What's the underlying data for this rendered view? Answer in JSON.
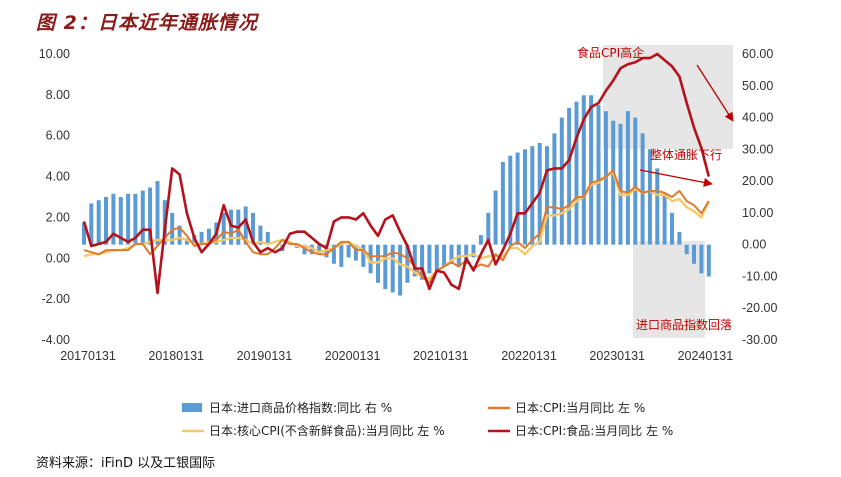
{
  "chart_data": {
    "type": "bar+line",
    "title": "图 2：日本近年通胀情况",
    "source": "资料来源：iFinD 以及工银国际",
    "x_tick_labels": [
      "20170131",
      "20180131",
      "20190131",
      "20200131",
      "20210131",
      "20220131",
      "20230131",
      "20240131"
    ],
    "x_start": "2017-01",
    "months": 86,
    "left_axis": {
      "ylim": [
        -4,
        10
      ],
      "ticks": [
        "-4.00",
        "-2.00",
        "0.00",
        "2.00",
        "4.00",
        "6.00",
        "8.00",
        "10.00"
      ],
      "tick_values": [
        -4,
        -2,
        0,
        2,
        4,
        6,
        8,
        10
      ]
    },
    "right_axis": {
      "ylim": [
        -30,
        60
      ],
      "ticks": [
        "-30.00",
        "-20.00",
        "-10.00",
        "0.00",
        "10.00",
        "20.00",
        "30.00",
        "40.00",
        "50.00",
        "60.00"
      ],
      "tick_values": [
        -30,
        -20,
        -10,
        0,
        10,
        20,
        30,
        40,
        50,
        60
      ]
    },
    "grid": false,
    "legend_position": "bottom",
    "colors": {
      "bar": "#5b9bd5",
      "cpi": "#e07a2e",
      "core": "#f5c96a",
      "food": "#b5121b",
      "ann": "#c00000",
      "shade": "#e6e6e6"
    },
    "series": [
      {
        "name": "日本:进口商品价格指数:同比 右 %",
        "axis": "right",
        "kind": "bar",
        "values": [
          7,
          13,
          14,
          15,
          16,
          15,
          16,
          16,
          17,
          18,
          20,
          14,
          10,
          6,
          2,
          3,
          4,
          5,
          7,
          10,
          11,
          11,
          12,
          10,
          6,
          4,
          0,
          -2,
          0,
          -1,
          -3,
          -3,
          -3,
          -4,
          -6,
          -7,
          -4,
          -5,
          -7,
          -9,
          -12,
          -14,
          -15,
          -16,
          -12,
          -10,
          -11,
          -9,
          -8,
          -7,
          -6,
          -7,
          -6,
          -4,
          3,
          10,
          17,
          26,
          28,
          29,
          30,
          31,
          32,
          31,
          35,
          40,
          43,
          45,
          47,
          47,
          44,
          42,
          39,
          38,
          42,
          40,
          35,
          30,
          24,
          16,
          10,
          4,
          -3,
          -6,
          -9,
          -10
        ]
      },
      {
        "name": "日本:CPI:当月同比 左 %",
        "axis": "left",
        "kind": "line",
        "values": [
          0.4,
          0.3,
          0.2,
          0.4,
          0.4,
          0.4,
          0.4,
          0.7,
          0.7,
          0.2,
          0.6,
          1.0,
          1.4,
          1.5,
          1.1,
          0.6,
          0.7,
          0.7,
          0.9,
          1.3,
          1.2,
          1.4,
          0.8,
          0.3,
          0.2,
          0.2,
          0.5,
          0.9,
          0.7,
          0.7,
          0.5,
          0.3,
          0.2,
          0.2,
          0.5,
          0.8,
          0.8,
          0.4,
          0.4,
          0.1,
          0.1,
          0.1,
          0.3,
          0.2,
          0.0,
          -0.4,
          -0.9,
          -1.2,
          -0.6,
          -0.4,
          -0.2,
          -0.4,
          -0.1,
          -0.5,
          -0.3,
          -0.4,
          0.2,
          -0.1,
          0.6,
          0.8,
          0.5,
          0.9,
          1.2,
          2.5,
          2.5,
          2.4,
          2.6,
          3.0,
          3.0,
          3.7,
          3.8,
          4.0,
          4.3,
          3.3,
          3.2,
          3.5,
          3.2,
          3.3,
          3.3,
          3.2,
          3.0,
          3.3,
          2.8,
          2.6,
          2.2,
          2.8
        ]
      },
      {
        "name": "日本:核心CPI(不含新鲜食品):当月同比 左 %",
        "axis": "left",
        "kind": "line",
        "values": [
          0.1,
          0.2,
          0.2,
          0.3,
          0.4,
          0.4,
          0.5,
          0.7,
          0.7,
          0.8,
          0.9,
          0.9,
          0.9,
          1.0,
          0.9,
          0.7,
          0.7,
          0.8,
          0.8,
          0.9,
          1.0,
          1.0,
          0.9,
          0.7,
          0.8,
          0.7,
          0.8,
          0.9,
          0.8,
          0.6,
          0.6,
          0.5,
          0.3,
          0.4,
          0.5,
          0.7,
          0.8,
          0.6,
          0.4,
          -0.2,
          -0.2,
          0.0,
          0.0,
          -0.3,
          -0.4,
          -0.7,
          -0.9,
          -1.0,
          -0.6,
          -0.4,
          -0.1,
          0.1,
          0.1,
          0.2,
          0.0,
          0.1,
          0.1,
          0.1,
          0.5,
          0.5,
          0.2,
          0.6,
          0.8,
          2.1,
          2.1,
          2.2,
          2.4,
          2.8,
          3.0,
          3.6,
          3.7,
          4.0,
          4.2,
          3.1,
          3.1,
          3.4,
          3.2,
          3.3,
          3.1,
          3.1,
          2.8,
          2.9,
          2.5,
          2.3,
          2.0,
          2.8
        ]
      },
      {
        "name": "日本:CPI:食品:当月同比 左 %",
        "axis": "left",
        "kind": "line",
        "values": [
          1.8,
          0.6,
          0.7,
          0.8,
          1.2,
          1.0,
          0.8,
          1.0,
          1.4,
          1.4,
          -1.7,
          1.4,
          4.4,
          4.1,
          2.2,
          1.0,
          0.3,
          0.7,
          1.2,
          2.6,
          1.6,
          1.5,
          1.9,
          0.8,
          0.3,
          0.5,
          0.3,
          0.5,
          1.2,
          1.3,
          1.3,
          1.0,
          0.7,
          0.5,
          1.8,
          2.0,
          2.0,
          1.9,
          2.2,
          1.6,
          1.1,
          1.9,
          2.1,
          1.3,
          0.6,
          -0.5,
          -0.5,
          -1.5,
          -0.6,
          -0.7,
          -1.3,
          -1.5,
          0.0,
          -0.6,
          0.2,
          0.9,
          -0.3,
          0.4,
          1.2,
          2.2,
          2.2,
          2.7,
          3.2,
          4.3,
          4.4,
          4.4,
          4.8,
          5.9,
          6.8,
          7.4,
          7.6,
          8.2,
          8.7,
          9.3,
          9.5,
          9.6,
          9.8,
          9.8,
          10.0,
          9.7,
          9.4,
          8.9,
          7.6,
          6.4,
          5.4,
          4.0
        ]
      }
    ],
    "annotations": [
      {
        "text": "食品CPI高企"
      },
      {
        "text": "整体通胀下行"
      },
      {
        "text": "进口商品指数回落"
      }
    ]
  }
}
